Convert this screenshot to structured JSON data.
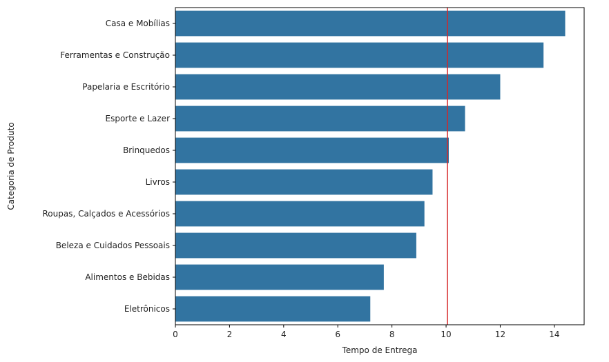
{
  "chart_data": {
    "type": "bar",
    "orientation": "horizontal",
    "title": "",
    "xlabel": "Tempo de Entrega",
    "ylabel": "Categoria de Produto",
    "categories": [
      "Casa e Mobílias",
      "Ferramentas e Construção",
      "Papelaria e Escritório",
      "Esporte e Lazer",
      "Brinquedos",
      "Livros",
      "Roupas, Calçados e Acessórios",
      "Beleza e Cuidados Pessoais",
      "Alimentos e Bebidas",
      "Eletrônicos"
    ],
    "values": [
      14.4,
      13.6,
      12.0,
      10.7,
      10.1,
      9.5,
      9.2,
      8.9,
      7.7,
      7.2
    ],
    "xlim": [
      0,
      15.1
    ],
    "xticks": [
      0,
      2,
      4,
      6,
      8,
      10,
      12,
      14
    ],
    "reference_line": {
      "x": 10.05,
      "color": "#d62728"
    },
    "bar_color": "#3274a1",
    "grid": false,
    "legend": "none"
  }
}
